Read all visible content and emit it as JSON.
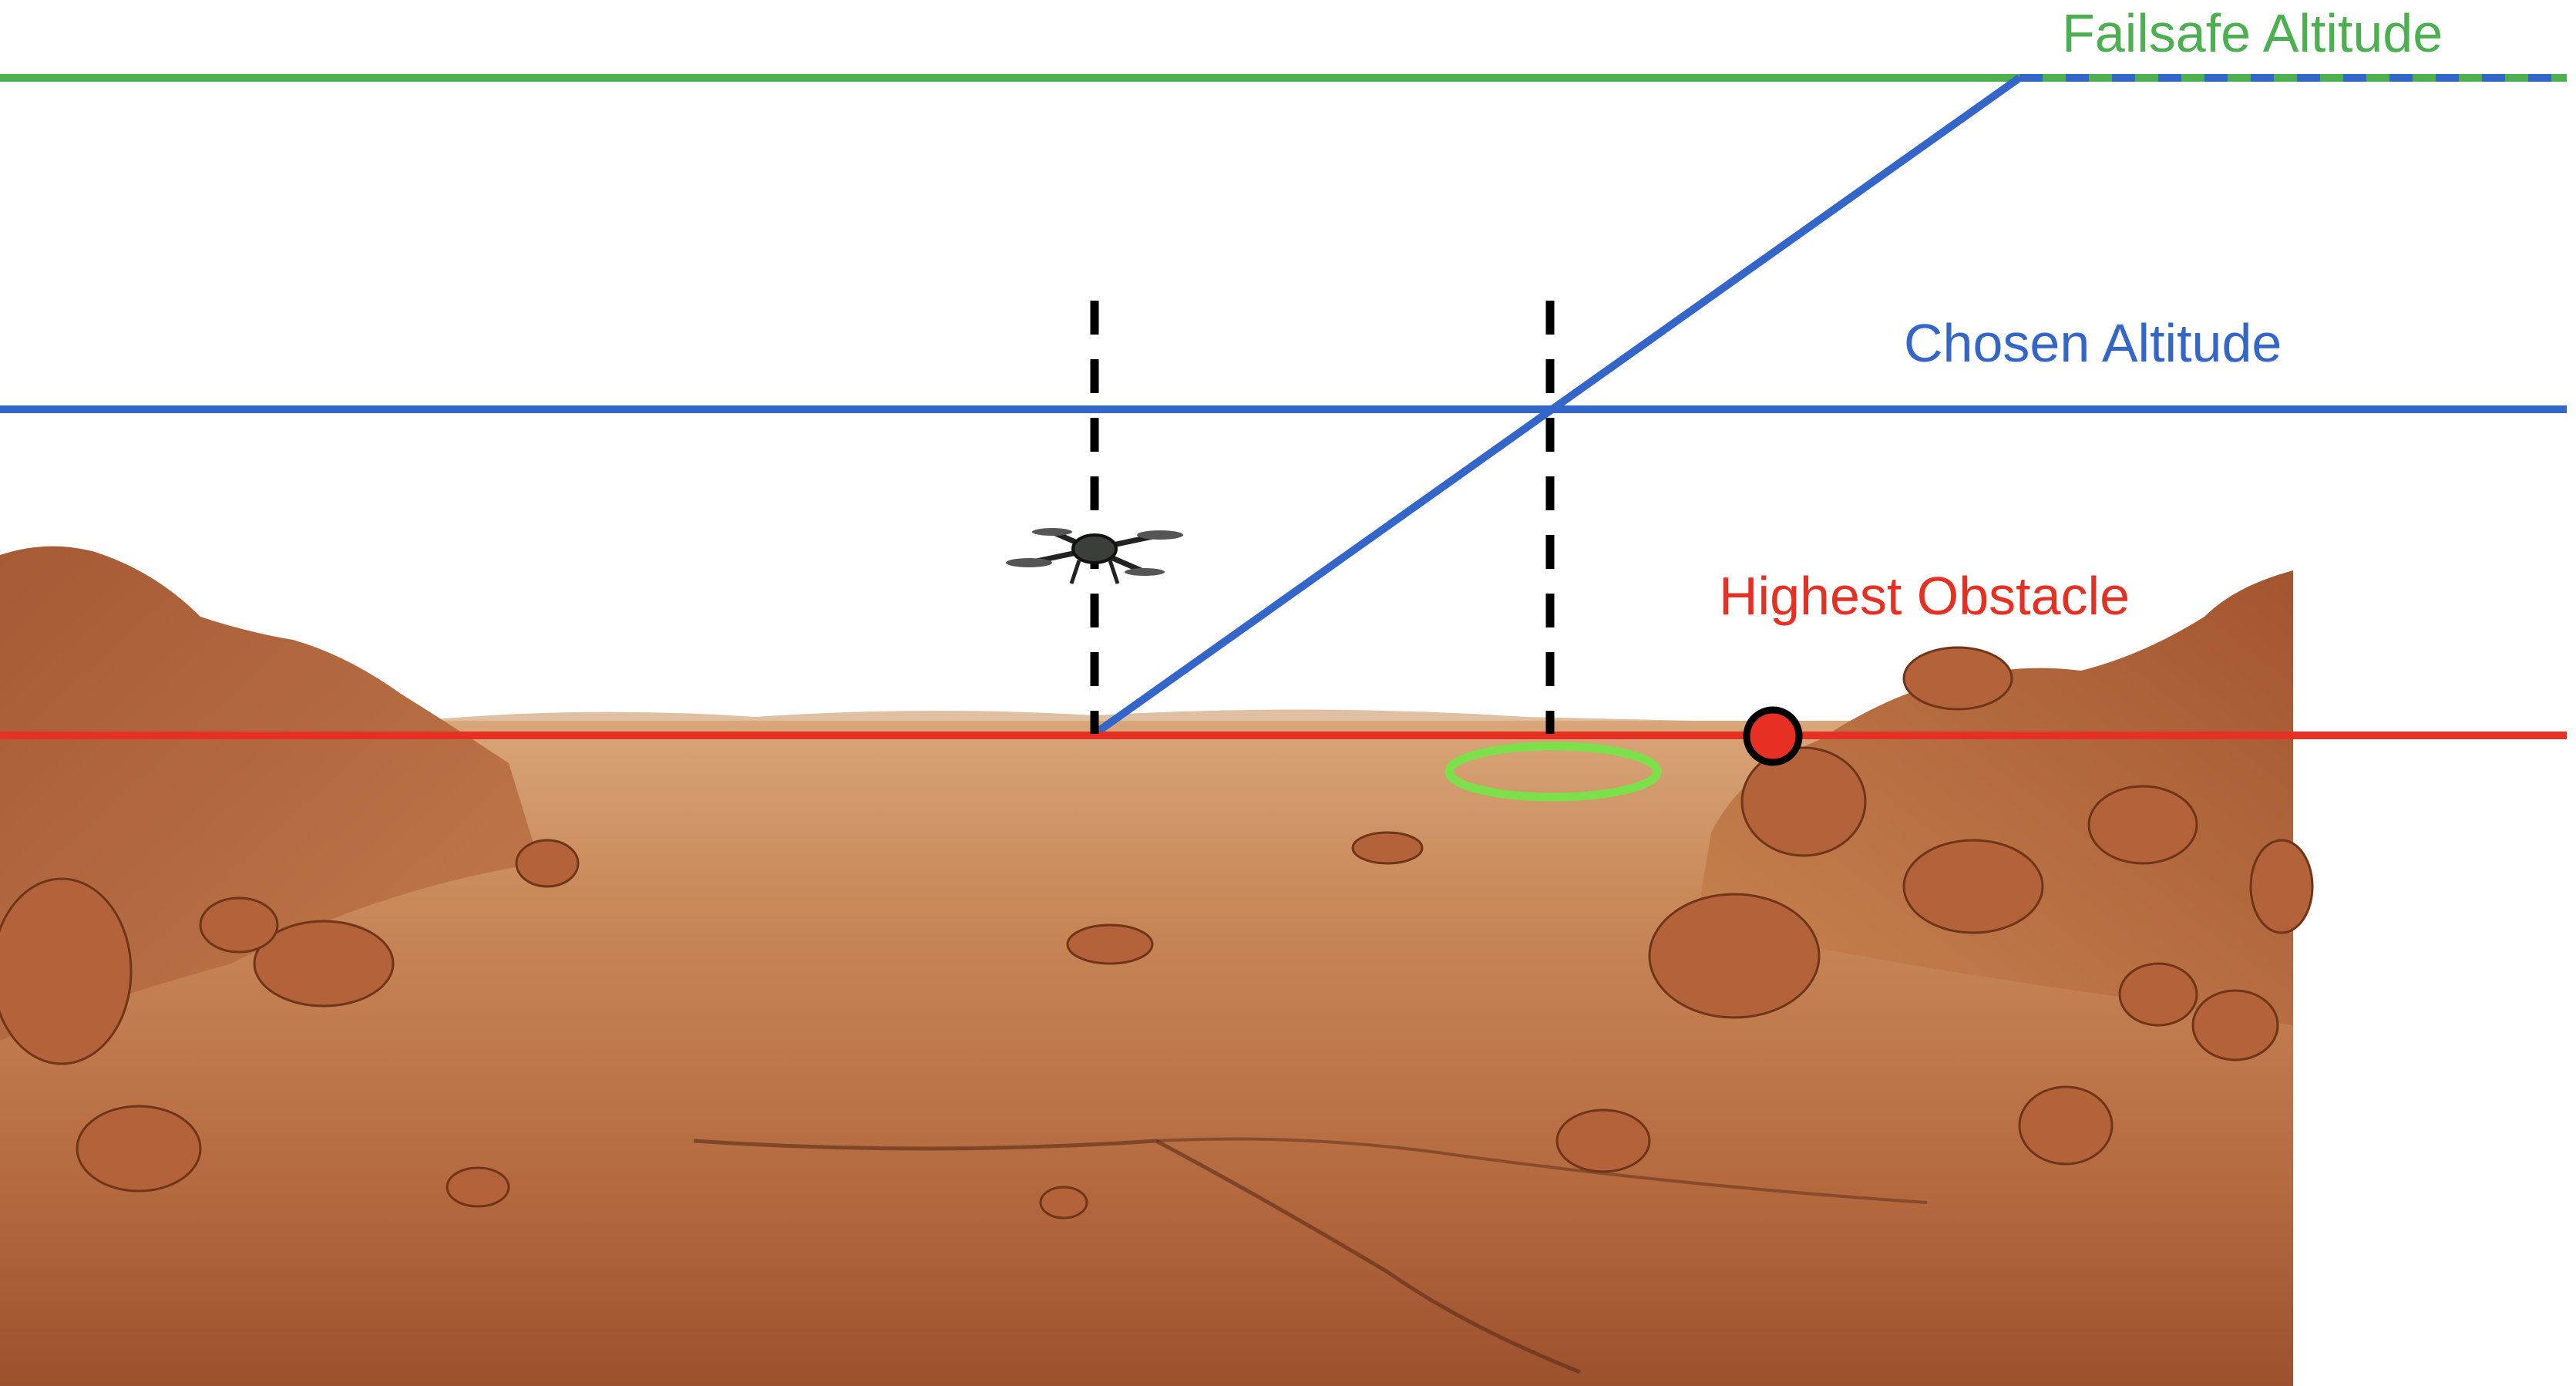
{
  "labels": {
    "failsafe_altitude": "Failsafe Altitude",
    "chosen_altitude": "Chosen Altitude",
    "highest_obstacle": "Highest Obstacle"
  },
  "colors": {
    "failsafe": "#4caf50",
    "chosen": "#3366c8",
    "obstacle": "#e53023",
    "marker": "#000000",
    "landing_ellipse": "#7be04a",
    "sky": "#ffffff",
    "terrain_light": "#c98a5a",
    "terrain_dark": "#8a4424",
    "rock": "#b4623a"
  },
  "icons": {
    "drone": "drone-icon",
    "obstacle_point": "obstacle-point-icon",
    "landing_zone": "landing-zone-ellipse"
  }
}
